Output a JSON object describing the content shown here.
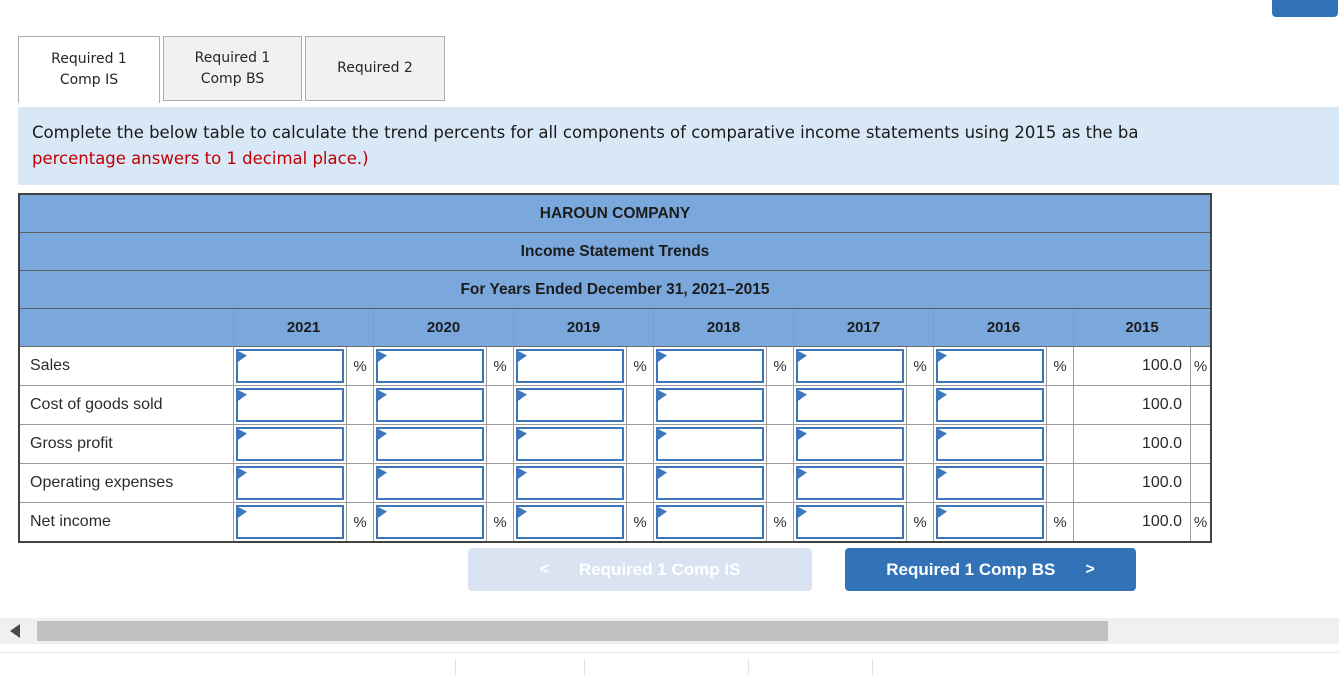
{
  "tabs": [
    {
      "line1": "Required 1",
      "line2": "Comp IS",
      "active": true
    },
    {
      "line1": "Required 1",
      "line2": "Comp BS",
      "active": false
    },
    {
      "line1": "Required 2",
      "line2": "",
      "active": false
    }
  ],
  "instruction": {
    "line1": "Complete the below table to calculate the trend percents for all components of comparative income statements using 2015 as the ba",
    "line2_red": "percentage answers to 1 decimal place.)"
  },
  "table": {
    "title1": "HAROUN COMPANY",
    "title2": "Income Statement Trends",
    "title3": "For Years Ended December 31, 2021–2015",
    "year_columns": [
      "2021",
      "2020",
      "2019",
      "2018",
      "2017",
      "2016",
      "2015"
    ],
    "pct_symbol": "%",
    "rows": [
      {
        "label": "Sales",
        "show_pct": true,
        "base_value": "100.0"
      },
      {
        "label": "Cost of goods sold",
        "show_pct": false,
        "base_value": "100.0"
      },
      {
        "label": "Gross profit",
        "show_pct": false,
        "base_value": "100.0"
      },
      {
        "label": "Operating expenses",
        "show_pct": false,
        "base_value": "100.0"
      },
      {
        "label": "Net income",
        "show_pct": true,
        "base_value": "100.0"
      }
    ],
    "input_values": ""
  },
  "nav_buttons": {
    "prev": {
      "chevron": "<",
      "label": "Required 1 Comp IS",
      "enabled": false
    },
    "next": {
      "label": "Required 1 Comp BS",
      "chevron": ">",
      "enabled": true
    }
  },
  "colors": {
    "table_header_blue": "#7AA8DC",
    "input_border_blue": "#3E76BC",
    "primary_button_blue": "#3273B8",
    "disabled_button_blue": "#D9E3F2",
    "instruction_bg": "#D9E8F7",
    "red_text": "#C00000"
  }
}
